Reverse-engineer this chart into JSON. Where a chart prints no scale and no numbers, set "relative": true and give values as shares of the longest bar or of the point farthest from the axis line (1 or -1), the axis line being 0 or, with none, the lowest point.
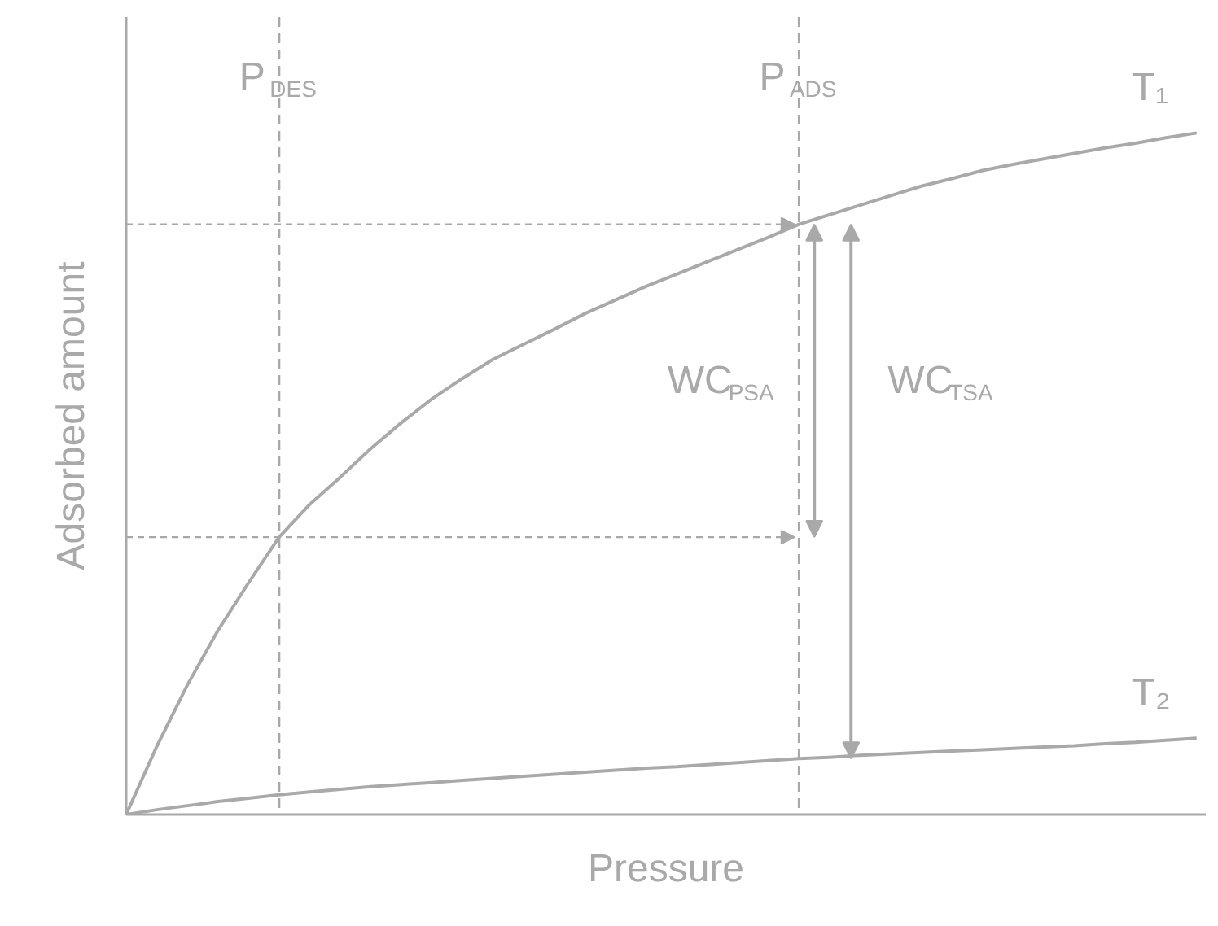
{
  "chart_data": {
    "type": "line",
    "relative": true,
    "xlabel": "Pressure",
    "ylabel": "Adsorbed amount",
    "categories": [
      null,
      null,
      null,
      null,
      null,
      null,
      null,
      null,
      null,
      null,
      null,
      null,
      null,
      null,
      null,
      null,
      null,
      null,
      null,
      null,
      null,
      null,
      null,
      null,
      null,
      null,
      null,
      null,
      null,
      null,
      null,
      null,
      null,
      null,
      null,
      null
    ],
    "series": [
      {
        "name": "T₁",
        "color": "#a9a9a9",
        "values": [
          0,
          0.1,
          0.19,
          0.27,
          0.34,
          0.407,
          0.455,
          0.495,
          0.537,
          0.575,
          0.61,
          0.64,
          0.668,
          0.69,
          0.712,
          0.735,
          0.755,
          0.775,
          0.793,
          0.811,
          0.829,
          0.847,
          0.866,
          0.88,
          0.894,
          0.908,
          0.922,
          0.933,
          0.945,
          0.954,
          0.962,
          0.97,
          0.978,
          0.985,
          0.993,
          1
        ]
      },
      {
        "name": "T₂",
        "color": "#a9a9a9",
        "values": [
          0,
          0.007,
          0.013,
          0.019,
          0.024,
          0.029,
          0.033,
          0.037,
          0.041,
          0.044,
          0.047,
          0.05,
          0.053,
          0.056,
          0.059,
          0.062,
          0.065,
          0.068,
          0.07,
          0.073,
          0.076,
          0.079,
          0.082,
          0.084,
          0.087,
          0.089,
          0.091,
          0.093,
          0.095,
          0.097,
          0.099,
          0.101,
          0.104,
          0.106,
          0.109,
          0.112
        ]
      }
    ],
    "annotations": [
      "P$_{DES}$",
      "P$_{ADS}$",
      "WC$_{PSA}$",
      "WC$_{TSA}$"
    ]
  }
}
